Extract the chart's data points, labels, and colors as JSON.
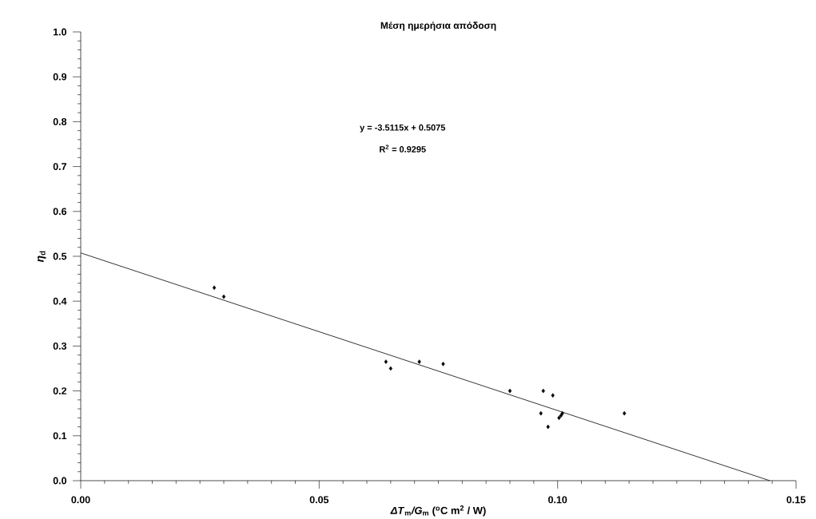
{
  "chart_data": {
    "type": "scatter",
    "title": "Μέση ημερήσια απόδοση",
    "xlabel": "*ΔT*$_{m}$*/G*$_{m}$  ($^{o}$C m$^{2}$ / W)",
    "ylabel": "*η*$_{d}$",
    "series": [
      {
        "color": "#000000",
        "marker": "diamond",
        "x": [
          0.028,
          0.03,
          0.064,
          0.065,
          0.071,
          0.076,
          0.09,
          0.097,
          0.099,
          0.0965,
          0.098,
          0.1003,
          0.1007,
          0.101,
          0.114
        ],
        "values": [
          0.43,
          0.41,
          0.265,
          0.25,
          0.265,
          0.26,
          0.2,
          0.2,
          0.19,
          0.15,
          0.12,
          0.14,
          0.145,
          0.15,
          0.15
        ]
      },
      {
        "type": "line",
        "color": "#000000",
        "marker": "none",
        "x": [
          0,
          0.1445
        ],
        "values": [
          0.5075,
          0
        ]
      }
    ],
    "annotations": [
      "y = -3.5115x + 0.5075",
      "R$^{2}$ = 0.9295"
    ],
    "xlim": [
      0,
      0.15
    ],
    "ylim": [
      0,
      1
    ],
    "xticks": [
      {
        "value": 0,
        "label": "0.00"
      },
      0.05,
      {
        "value": 0.1,
        "label": "0.10"
      },
      0.15
    ],
    "yticks": [
      {
        "value": 0,
        "label": "0.0"
      },
      0.1,
      0.2,
      0.3,
      0.4,
      0.5,
      0.6,
      0.7,
      0.8,
      0.9,
      {
        "value": 1,
        "label": "1.0"
      }
    ],
    "grid": false
  }
}
